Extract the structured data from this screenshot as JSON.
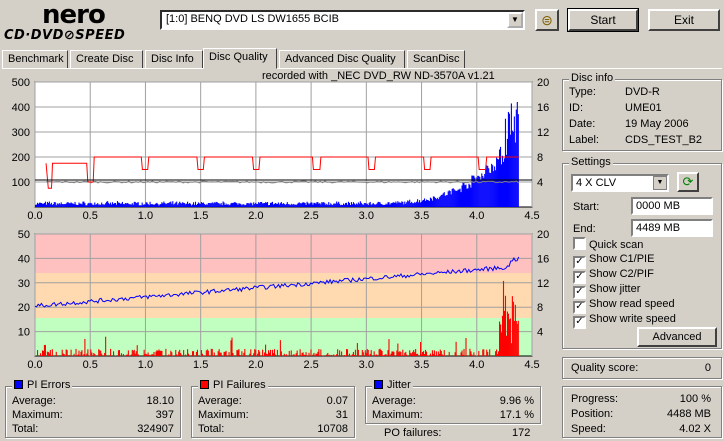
{
  "app": {
    "logo_top": "nero",
    "logo_bottom": "CD·DVD⊘SPEED",
    "drive": "[1:0]  BENQ DVD LS DW1655 BCIB",
    "start_label": "Start",
    "exit_label": "Exit"
  },
  "tabs": [
    {
      "label": "Benchmark"
    },
    {
      "label": "Create Disc"
    },
    {
      "label": "Disc Info"
    },
    {
      "label": "Disc Quality"
    },
    {
      "label": "Advanced Disc Quality"
    },
    {
      "label": "ScanDisc"
    }
  ],
  "chart_header": "recorded with _NEC      DVD_RW ND-3570A   v1.21",
  "chart_data": [
    {
      "type": "bar",
      "title": "",
      "x_ticks": [
        "0.0",
        "0.5",
        "1.0",
        "1.5",
        "2.0",
        "2.5",
        "3.0",
        "3.5",
        "4.0",
        "4.5"
      ],
      "y_left_ticks": [
        "500",
        "400",
        "300",
        "200",
        "100"
      ],
      "y_right_ticks": [
        "20",
        "16",
        "12",
        "8",
        "4"
      ],
      "xlim": [
        0,
        4.5
      ],
      "ylim_left": [
        0,
        500
      ],
      "ylim_right": [
        0,
        20
      ],
      "series": [
        {
          "name": "PI Errors",
          "color": "#0000ff"
        },
        {
          "name": "Write speed",
          "color": "#ff0000"
        },
        {
          "name": "Read speed",
          "color": "#808080"
        }
      ]
    },
    {
      "type": "bar",
      "title": "",
      "x_ticks": [
        "0.0",
        "0.5",
        "1.0",
        "1.5",
        "2.0",
        "2.5",
        "3.0",
        "3.5",
        "4.0",
        "4.5"
      ],
      "y_left_ticks": [
        "50",
        "40",
        "30",
        "20",
        "10"
      ],
      "y_right_ticks": [
        "20",
        "16",
        "12",
        "8",
        "4"
      ],
      "xlim": [
        0,
        4.5
      ],
      "ylim_left": [
        0,
        50
      ],
      "ylim_right": [
        0,
        20
      ],
      "series": [
        {
          "name": "PI Failures",
          "color": "#ff0000"
        },
        {
          "name": "Jitter",
          "color": "#0000ff"
        }
      ]
    }
  ],
  "disc_info": {
    "title": "Disc info",
    "rows": [
      {
        "label": "Type:",
        "value": "DVD-R"
      },
      {
        "label": "ID:",
        "value": "UME01"
      },
      {
        "label": "Date:",
        "value": "19 May 2006"
      },
      {
        "label": "Label:",
        "value": "CDS_TEST_B2"
      }
    ]
  },
  "settings": {
    "title": "Settings",
    "speed": "4 X CLV",
    "start_label": "Start:",
    "start_value": "0000 MB",
    "end_label": "End:",
    "end_value": "4489 MB",
    "checkboxes": [
      {
        "label": "Quick scan",
        "checked": false
      },
      {
        "label": "Show C1/PIE",
        "checked": true
      },
      {
        "label": "Show C2/PIF",
        "checked": true
      },
      {
        "label": "Show jitter",
        "checked": true
      },
      {
        "label": "Show read speed",
        "checked": true
      },
      {
        "label": "Show write speed",
        "checked": true
      }
    ],
    "advanced_label": "Advanced"
  },
  "quality": {
    "label": "Quality score:",
    "value": "0"
  },
  "progress": {
    "rows": [
      {
        "label": "Progress:",
        "value": "100 %"
      },
      {
        "label": "Position:",
        "value": "4488 MB"
      },
      {
        "label": "Speed:",
        "value": "4.02 X"
      }
    ]
  },
  "pi_errors": {
    "title": "PI Errors",
    "color": "#0000ff",
    "rows": [
      {
        "label": "Average:",
        "value": "18.10"
      },
      {
        "label": "Maximum:",
        "value": "397"
      },
      {
        "label": "Total:",
        "value": "324907"
      }
    ]
  },
  "pi_failures": {
    "title": "PI Failures",
    "color": "#ff0000",
    "rows": [
      {
        "label": "Average:",
        "value": "0.07"
      },
      {
        "label": "Maximum:",
        "value": "31"
      },
      {
        "label": "Total:",
        "value": "10708"
      }
    ]
  },
  "jitter": {
    "title": "Jitter",
    "color": "#0000ff",
    "rows": [
      {
        "label": "Average:",
        "value": "9.96 %"
      },
      {
        "label": "Maximum:",
        "value": "17.1 %"
      }
    ]
  },
  "po_failures": {
    "label": "PO failures:",
    "value": "172"
  }
}
